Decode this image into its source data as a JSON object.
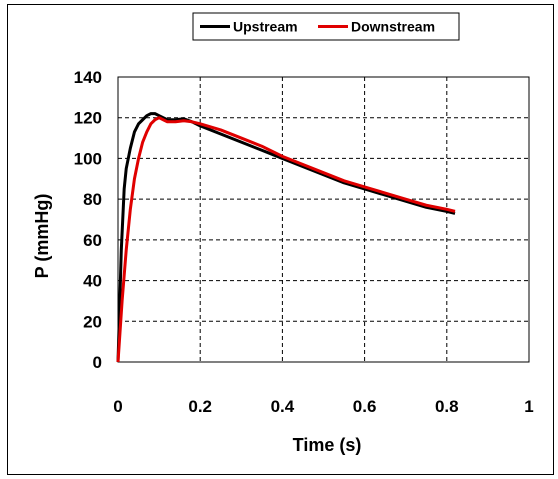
{
  "chart_data": {
    "type": "line",
    "title": "",
    "xlabel": "Time (s)",
    "ylabel": "P  (mmHg)",
    "xlim": [
      0,
      1
    ],
    "ylim": [
      0,
      140
    ],
    "x_ticks": [
      0,
      0.2,
      0.4,
      0.6,
      0.8,
      1
    ],
    "x_tick_labels": [
      "0",
      "0.2",
      "0.4",
      "0.6",
      "0.8",
      "1"
    ],
    "y_ticks": [
      0,
      20,
      40,
      60,
      80,
      100,
      120,
      140
    ],
    "y_tick_labels": [
      "0",
      "20",
      "40",
      "60",
      "80",
      "100",
      "120",
      "140"
    ],
    "grid": true,
    "legend_position": "top",
    "series": [
      {
        "name": "Upstream",
        "color": "#000000",
        "x": [
          0,
          0.003,
          0.008,
          0.015,
          0.02,
          0.03,
          0.04,
          0.05,
          0.06,
          0.07,
          0.08,
          0.09,
          0.1,
          0.11,
          0.12,
          0.14,
          0.16,
          0.18,
          0.2,
          0.25,
          0.3,
          0.35,
          0.4,
          0.45,
          0.5,
          0.55,
          0.6,
          0.65,
          0.7,
          0.75,
          0.8,
          0.82
        ],
        "y": [
          0,
          20,
          55,
          85,
          95,
          105,
          113,
          117,
          119,
          121,
          122,
          122,
          121,
          120,
          119,
          119,
          119.5,
          118,
          116,
          112,
          108,
          104,
          100,
          96,
          92,
          88,
          85,
          82,
          79,
          76,
          74,
          73
        ]
      },
      {
        "name": "Downstream",
        "color": "#e00000",
        "x": [
          0,
          0.005,
          0.01,
          0.02,
          0.03,
          0.04,
          0.05,
          0.06,
          0.07,
          0.08,
          0.09,
          0.1,
          0.11,
          0.12,
          0.14,
          0.16,
          0.18,
          0.2,
          0.25,
          0.3,
          0.35,
          0.4,
          0.45,
          0.5,
          0.55,
          0.6,
          0.65,
          0.7,
          0.75,
          0.8,
          0.82
        ],
        "y": [
          0,
          15,
          30,
          55,
          75,
          90,
          100,
          108,
          113,
          117,
          119,
          120,
          119,
          118,
          118,
          118.5,
          118,
          117,
          114,
          110,
          106,
          101,
          97,
          93,
          89,
          86,
          83,
          80,
          77,
          75,
          74
        ]
      }
    ]
  }
}
